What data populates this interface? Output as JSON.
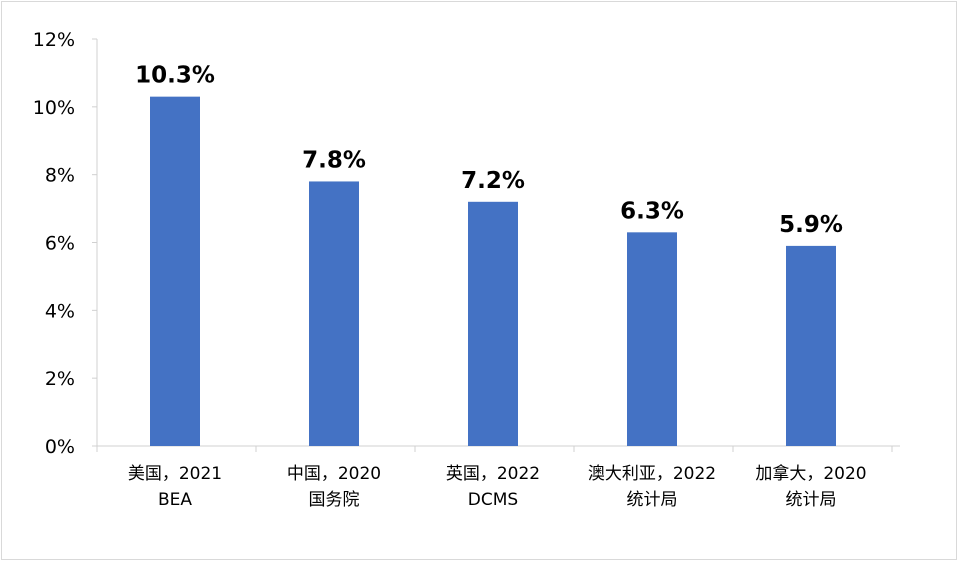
{
  "chart_data": {
    "type": "bar",
    "categories": [
      [
        "美国，2021",
        "BEA"
      ],
      [
        "中国，2020",
        "国务院"
      ],
      [
        "英国，2022",
        "DCMS"
      ],
      [
        "澳大利亚，2022",
        "统计局"
      ],
      [
        "加拿大，2020",
        "统计局"
      ]
    ],
    "values": [
      10.3,
      7.8,
      7.2,
      6.3,
      5.9
    ],
    "data_labels": [
      "10.3%",
      "7.8%",
      "7.2%",
      "6.3%",
      "5.9%"
    ],
    "yticks": [
      "0%",
      "2%",
      "4%",
      "6%",
      "8%",
      "10%",
      "12%"
    ],
    "ylim": [
      0,
      12
    ],
    "title": "",
    "xlabel": "",
    "ylabel": "",
    "grid": false,
    "legend": "none",
    "bar_color": "#4472C4"
  }
}
